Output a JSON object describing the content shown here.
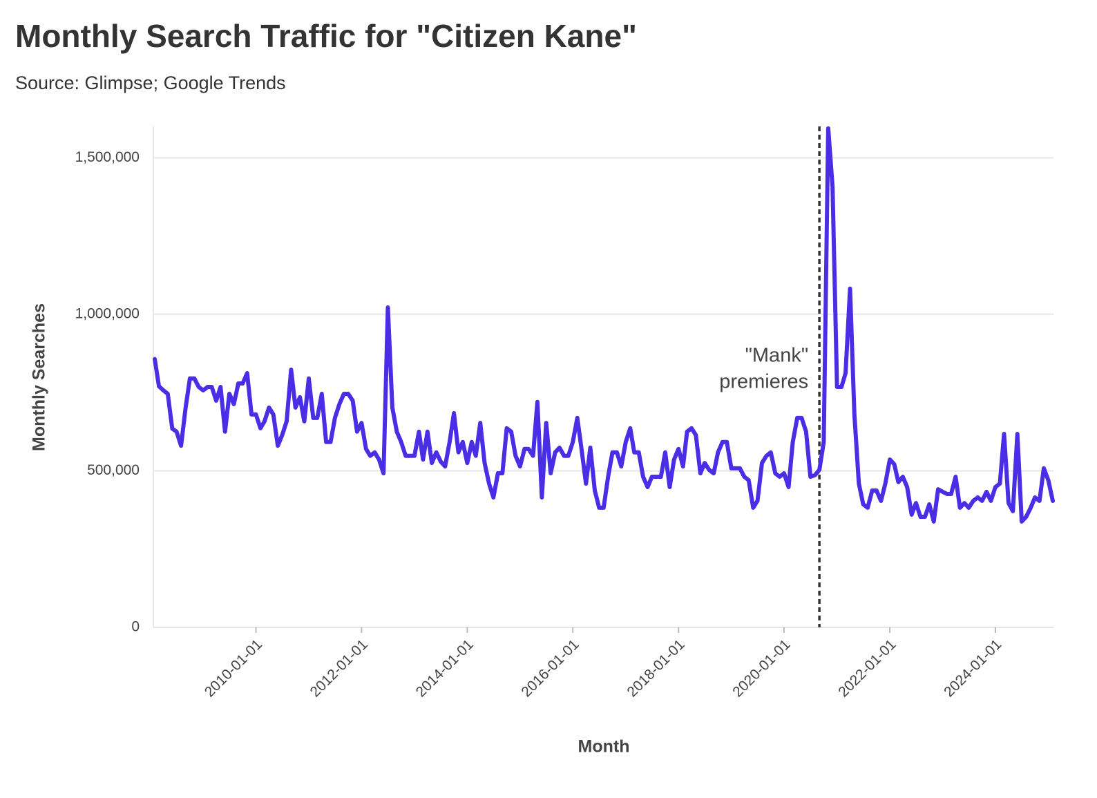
{
  "chart_data": {
    "type": "line",
    "title": "Monthly Search Traffic for \"Citizen Kane\"",
    "subtitle": "Source: Glimpse; Google Trends",
    "x_label": "Month",
    "y_label": "Monthly Searches",
    "xlim": [
      "2008-02-01",
      "2025-02-01"
    ],
    "ylim": [
      0,
      1600000
    ],
    "xticks": [
      "2010-01-01",
      "2012-01-01",
      "2014-01-01",
      "2016-01-01",
      "2018-01-01",
      "2020-01-01",
      "2022-01-01",
      "2024-01-01"
    ],
    "yticks": [
      0,
      {
        "value": 500000,
        "label": "500,000"
      },
      {
        "value": 1000000,
        "label": "1,000,000"
      },
      {
        "value": 1500000,
        "label": "1,500,000"
      }
    ],
    "grid": true,
    "annotation": {
      "x": "2020-09-01",
      "text": [
        "\"Mank\"",
        "premieres"
      ]
    },
    "x": [
      "2008-02-01",
      "2008-03-01",
      "2008-04-01",
      "2008-05-01",
      "2008-06-01",
      "2008-07-01",
      "2008-08-01",
      "2008-09-01",
      "2008-10-01",
      "2008-11-01",
      "2008-12-01",
      "2009-01-01",
      "2009-02-01",
      "2009-03-01",
      "2009-04-01",
      "2009-05-01",
      "2009-06-01",
      "2009-07-01",
      "2009-08-01",
      "2009-09-01",
      "2009-10-01",
      "2009-11-01",
      "2009-12-01",
      "2010-01-01",
      "2010-02-01",
      "2010-03-01",
      "2010-04-01",
      "2010-05-01",
      "2010-06-01",
      "2010-07-01",
      "2010-08-01",
      "2010-09-01",
      "2010-10-01",
      "2010-11-01",
      "2010-12-01",
      "2011-01-01",
      "2011-02-01",
      "2011-03-01",
      "2011-04-01",
      "2011-05-01",
      "2011-06-01",
      "2011-07-01",
      "2011-08-01",
      "2011-09-01",
      "2011-10-01",
      "2011-11-01",
      "2011-12-01",
      "2012-01-01",
      "2012-02-01",
      "2012-03-01",
      "2012-04-01",
      "2012-05-01",
      "2012-06-01",
      "2012-07-01",
      "2012-08-01",
      "2012-09-01",
      "2012-10-01",
      "2012-11-01",
      "2012-12-01",
      "2013-01-01",
      "2013-02-01",
      "2013-03-01",
      "2013-04-01",
      "2013-05-01",
      "2013-06-01",
      "2013-07-01",
      "2013-08-01",
      "2013-09-01",
      "2013-10-01",
      "2013-11-01",
      "2013-12-01",
      "2014-01-01",
      "2014-02-01",
      "2014-03-01",
      "2014-04-01",
      "2014-05-01",
      "2014-06-01",
      "2014-07-01",
      "2014-08-01",
      "2014-09-01",
      "2014-10-01",
      "2014-11-01",
      "2014-12-01",
      "2015-01-01",
      "2015-02-01",
      "2015-03-01",
      "2015-04-01",
      "2015-05-01",
      "2015-06-01",
      "2015-07-01",
      "2015-08-01",
      "2015-09-01",
      "2015-10-01",
      "2015-11-01",
      "2015-12-01",
      "2016-01-01",
      "2016-02-01",
      "2016-03-01",
      "2016-04-01",
      "2016-05-01",
      "2016-06-01",
      "2016-07-01",
      "2016-08-01",
      "2016-09-01",
      "2016-10-01",
      "2016-11-01",
      "2016-12-01",
      "2017-01-01",
      "2017-02-01",
      "2017-03-01",
      "2017-04-01",
      "2017-05-01",
      "2017-06-01",
      "2017-07-01",
      "2017-08-01",
      "2017-09-01",
      "2017-10-01",
      "2017-11-01",
      "2017-12-01",
      "2018-01-01",
      "2018-02-01",
      "2018-03-01",
      "2018-04-01",
      "2018-05-01",
      "2018-06-01",
      "2018-07-01",
      "2018-08-01",
      "2018-09-01",
      "2018-10-01",
      "2018-11-01",
      "2018-12-01",
      "2019-01-01",
      "2019-02-01",
      "2019-03-01",
      "2019-04-01",
      "2019-05-01",
      "2019-06-01",
      "2019-07-01",
      "2019-08-01",
      "2019-09-01",
      "2019-10-01",
      "2019-11-01",
      "2019-12-01",
      "2020-01-01",
      "2020-02-01",
      "2020-03-01",
      "2020-04-01",
      "2020-05-01",
      "2020-06-01",
      "2020-07-01",
      "2020-08-01",
      "2020-09-01",
      "2020-10-01",
      "2020-11-01",
      "2020-12-01",
      "2021-01-01",
      "2021-02-01",
      "2021-03-01",
      "2021-04-01",
      "2021-05-01",
      "2021-06-01",
      "2021-07-01",
      "2021-08-01",
      "2021-09-01",
      "2021-10-01",
      "2021-11-01",
      "2021-12-01",
      "2022-01-01",
      "2022-02-01",
      "2022-03-01",
      "2022-04-01",
      "2022-05-01",
      "2022-06-01",
      "2022-07-01",
      "2022-08-01",
      "2022-09-01",
      "2022-10-01",
      "2022-11-01",
      "2022-12-01",
      "2023-01-01",
      "2023-02-01",
      "2023-03-01",
      "2023-04-01",
      "2023-05-01",
      "2023-06-01",
      "2023-07-01",
      "2023-08-01",
      "2023-09-01",
      "2023-10-01",
      "2023-11-01",
      "2023-12-01",
      "2024-01-01",
      "2024-02-01",
      "2024-03-01",
      "2024-04-01",
      "2024-05-01",
      "2024-06-01",
      "2024-07-01",
      "2024-08-01",
      "2024-09-01",
      "2024-10-01",
      "2024-11-01",
      "2024-12-01",
      "2025-01-01",
      "2025-02-01"
    ],
    "series": [
      {
        "name": "Monthly Searches",
        "color": "#4a2ee6",
        "values": [
          857000,
          770000,
          757000,
          746000,
          635000,
          625000,
          580000,
          700000,
          795000,
          795000,
          768000,
          757000,
          768000,
          768000,
          724000,
          768000,
          625000,
          746000,
          713000,
          779000,
          779000,
          812000,
          680000,
          680000,
          636000,
          658000,
          702000,
          680000,
          580000,
          614000,
          658000,
          823000,
          702000,
          735000,
          658000,
          795000,
          669000,
          669000,
          746000,
          592000,
          592000,
          669000,
          713000,
          746000,
          746000,
          724000,
          625000,
          653000,
          570000,
          548000,
          559000,
          536000,
          492000,
          1022000,
          702000,
          625000,
          592000,
          548000,
          548000,
          548000,
          625000,
          536000,
          625000,
          525000,
          559000,
          530000,
          514000,
          592000,
          684000,
          559000,
          592000,
          525000,
          592000,
          548000,
          653000,
          525000,
          459000,
          415000,
          492000,
          492000,
          636000,
          625000,
          548000,
          514000,
          570000,
          570000,
          548000,
          720000,
          415000,
          653000,
          492000,
          559000,
          574000,
          548000,
          548000,
          592000,
          669000,
          570000,
          459000,
          574000,
          437000,
          382000,
          382000,
          481000,
          559000,
          559000,
          514000,
          592000,
          636000,
          559000,
          559000,
          481000,
          448000,
          481000,
          481000,
          481000,
          559000,
          448000,
          536000,
          570000,
          514000,
          625000,
          636000,
          614000,
          492000,
          525000,
          503000,
          492000,
          559000,
          592000,
          592000,
          508000,
          508000,
          508000,
          481000,
          470000,
          382000,
          404000,
          525000,
          548000,
          559000,
          492000,
          481000,
          492000,
          448000,
          592000,
          669000,
          669000,
          625000,
          481000,
          486000,
          503000,
          592000,
          1594000,
          1408000,
          768000,
          768000,
          812000,
          1082000,
          680000,
          459000,
          393000,
          382000,
          437000,
          437000,
          404000,
          459000,
          536000,
          521000,
          464000,
          481000,
          448000,
          360000,
          397000,
          353000,
          353000,
          393000,
          338000,
          441000,
          433000,
          426000,
          426000,
          481000,
          382000,
          397000,
          382000,
          404000,
          415000,
          404000,
          433000,
          404000,
          448000,
          459000,
          618000,
          397000,
          371000,
          618000,
          338000,
          353000,
          382000,
          415000,
          404000,
          508000,
          470000,
          404000
        ]
      }
    ]
  }
}
